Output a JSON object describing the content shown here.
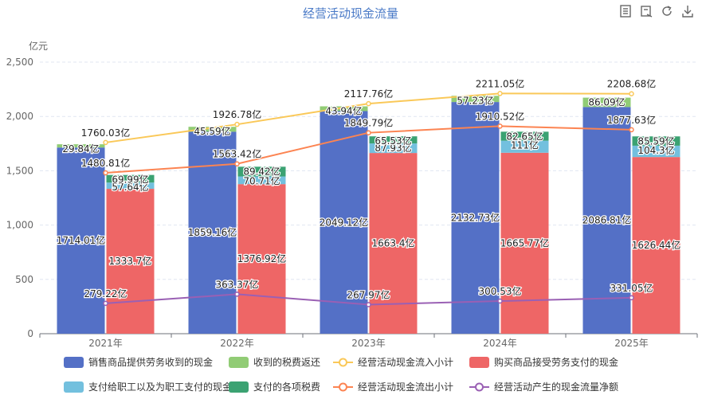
{
  "toolbar": {
    "icons": [
      "data-view-icon",
      "restore-icon",
      "refresh-icon",
      "download-icon"
    ]
  },
  "chart_data": {
    "type": "bar",
    "title": "经营活动现金流量",
    "ylabel": "亿元",
    "ylim": [
      0,
      2500
    ],
    "yticks": [
      0,
      500,
      1000,
      1500,
      2000,
      2500
    ],
    "ytick_labels": [
      "0",
      "500",
      "1,000",
      "1,500",
      "2,000",
      "2,500"
    ],
    "categories": [
      "2021年",
      "2022年",
      "2023年",
      "2024年",
      "2025年"
    ],
    "label_suffix": "亿",
    "stacks": [
      {
        "name": "inflow",
        "series": [
          {
            "name": "销售商品提供劳务收到的现金",
            "color": "#5470c6",
            "values": [
              1714.01,
              1859.16,
              2049.12,
              2132.73,
              2086.81
            ]
          },
          {
            "name": "收到的税费返还",
            "color": "#91cc75",
            "values": [
              29.84,
              45.59,
              43.94,
              57.23,
              86.09
            ]
          }
        ]
      },
      {
        "name": "outflow",
        "series": [
          {
            "name": "购买商品接受劳务支付的现金",
            "color": "#ee6666",
            "values": [
              1333.7,
              1376.92,
              1663.4,
              1665.77,
              1626.44
            ]
          },
          {
            "name": "支付给职工以及为职工支付的现金",
            "color": "#73c0de",
            "values": [
              57.64,
              70.71,
              87.93,
              111,
              104.3
            ]
          },
          {
            "name": "支付的各项税费",
            "color": "#3ba272",
            "values": [
              69.99,
              89.42,
              65.53,
              82.65,
              85.59
            ]
          }
        ]
      }
    ],
    "lines": [
      {
        "name": "经营活动现金流入小计",
        "color": "#fac858",
        "values": [
          1760.03,
          1926.78,
          2117.76,
          2211.05,
          2208.68
        ]
      },
      {
        "name": "经营活动现金流出小计",
        "color": "#fc8452",
        "values": [
          1480.81,
          1563.42,
          1849.79,
          1910.52,
          1877.63
        ]
      },
      {
        "name": "经营活动产生的现金流量净额",
        "color": "#9a60b4",
        "values": [
          279.22,
          363.37,
          267.97,
          300.53,
          331.05
        ]
      }
    ],
    "legend": [
      {
        "name": "销售商品提供劳务收到的现金",
        "kind": "bar",
        "color": "#5470c6"
      },
      {
        "name": "收到的税费返还",
        "kind": "bar",
        "color": "#91cc75"
      },
      {
        "name": "经营活动现金流入小计",
        "kind": "line",
        "color": "#fac858"
      },
      {
        "name": "购买商品接受劳务支付的现金",
        "kind": "bar",
        "color": "#ee6666"
      },
      {
        "name": "支付给职工以及为职工支付的现金",
        "kind": "bar",
        "color": "#73c0de"
      },
      {
        "name": "支付的各项税费",
        "kind": "bar",
        "color": "#3ba272"
      },
      {
        "name": "经营活动现金流出小计",
        "kind": "line",
        "color": "#fc8452"
      },
      {
        "name": "经营活动产生的现金流量净额",
        "kind": "line",
        "color": "#9a60b4"
      }
    ],
    "grid": true,
    "legend_position": "bottom"
  }
}
